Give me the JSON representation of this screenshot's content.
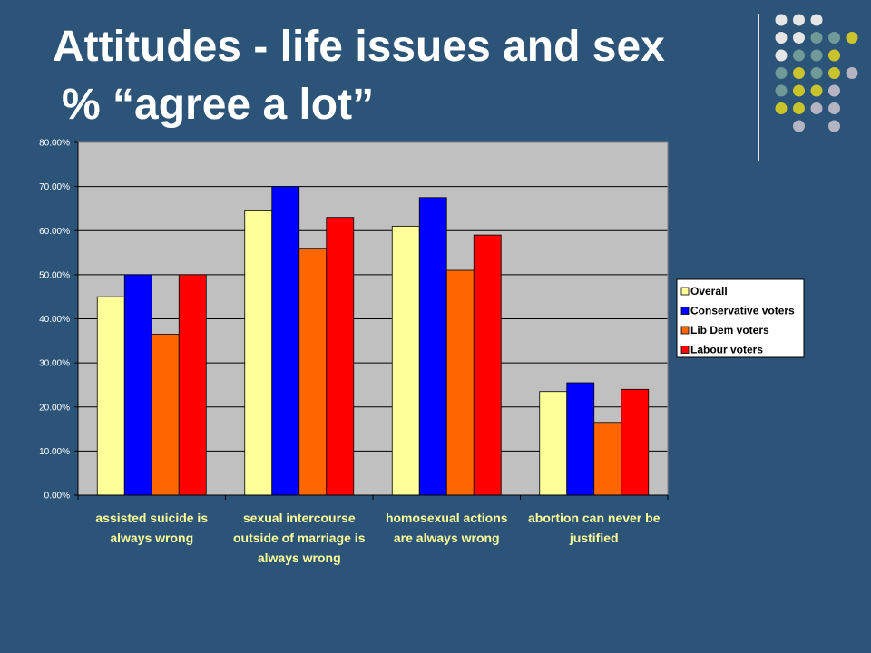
{
  "slide": {
    "background": "#2c5479",
    "title_line1": "Attitudes - life issues and sex",
    "title_line2": "% “agree a lot”",
    "decor_dot_colors": [
      "#e6e6e6",
      "#6f9a98",
      "#c9c42b",
      "#b4b4c3"
    ]
  },
  "chart_data": {
    "type": "bar",
    "categories": [
      "assisted suicide is always wrong",
      "sexual intercourse outside of marriage is always wrong",
      "homosexual actions are always wrong",
      "abortion can never be justified"
    ],
    "category_label_lines": [
      [
        "assisted suicide is",
        "always wrong"
      ],
      [
        "sexual intercourse",
        "outside of marriage is",
        "always wrong"
      ],
      [
        "homosexual actions",
        "are always wrong"
      ],
      [
        "abortion can never be",
        "justified"
      ]
    ],
    "series": [
      {
        "name": "Overall",
        "color": "#ffff99",
        "values": [
          45,
          64.5,
          61,
          23.5
        ]
      },
      {
        "name": "Conservative voters",
        "color": "#0000ff",
        "values": [
          50,
          70,
          67.5,
          25.5
        ]
      },
      {
        "name": "Lib Dem voters",
        "color": "#ff6600",
        "values": [
          36.5,
          56,
          51,
          16.5
        ]
      },
      {
        "name": "Labour voters",
        "color": "#ff0000",
        "values": [
          50,
          63,
          59,
          24
        ]
      }
    ],
    "ylim": [
      0,
      80
    ],
    "yticks": [
      0,
      10,
      20,
      30,
      40,
      50,
      60,
      70,
      80
    ],
    "ytick_labels": [
      "0.00%",
      "10.00%",
      "20.00%",
      "30.00%",
      "40.00%",
      "50.00%",
      "60.00%",
      "70.00%",
      "80.00%"
    ],
    "grid": true,
    "plot_background": "#c0c0c0",
    "legend": {
      "position": "right"
    },
    "title": "",
    "xlabel": "",
    "ylabel": ""
  }
}
